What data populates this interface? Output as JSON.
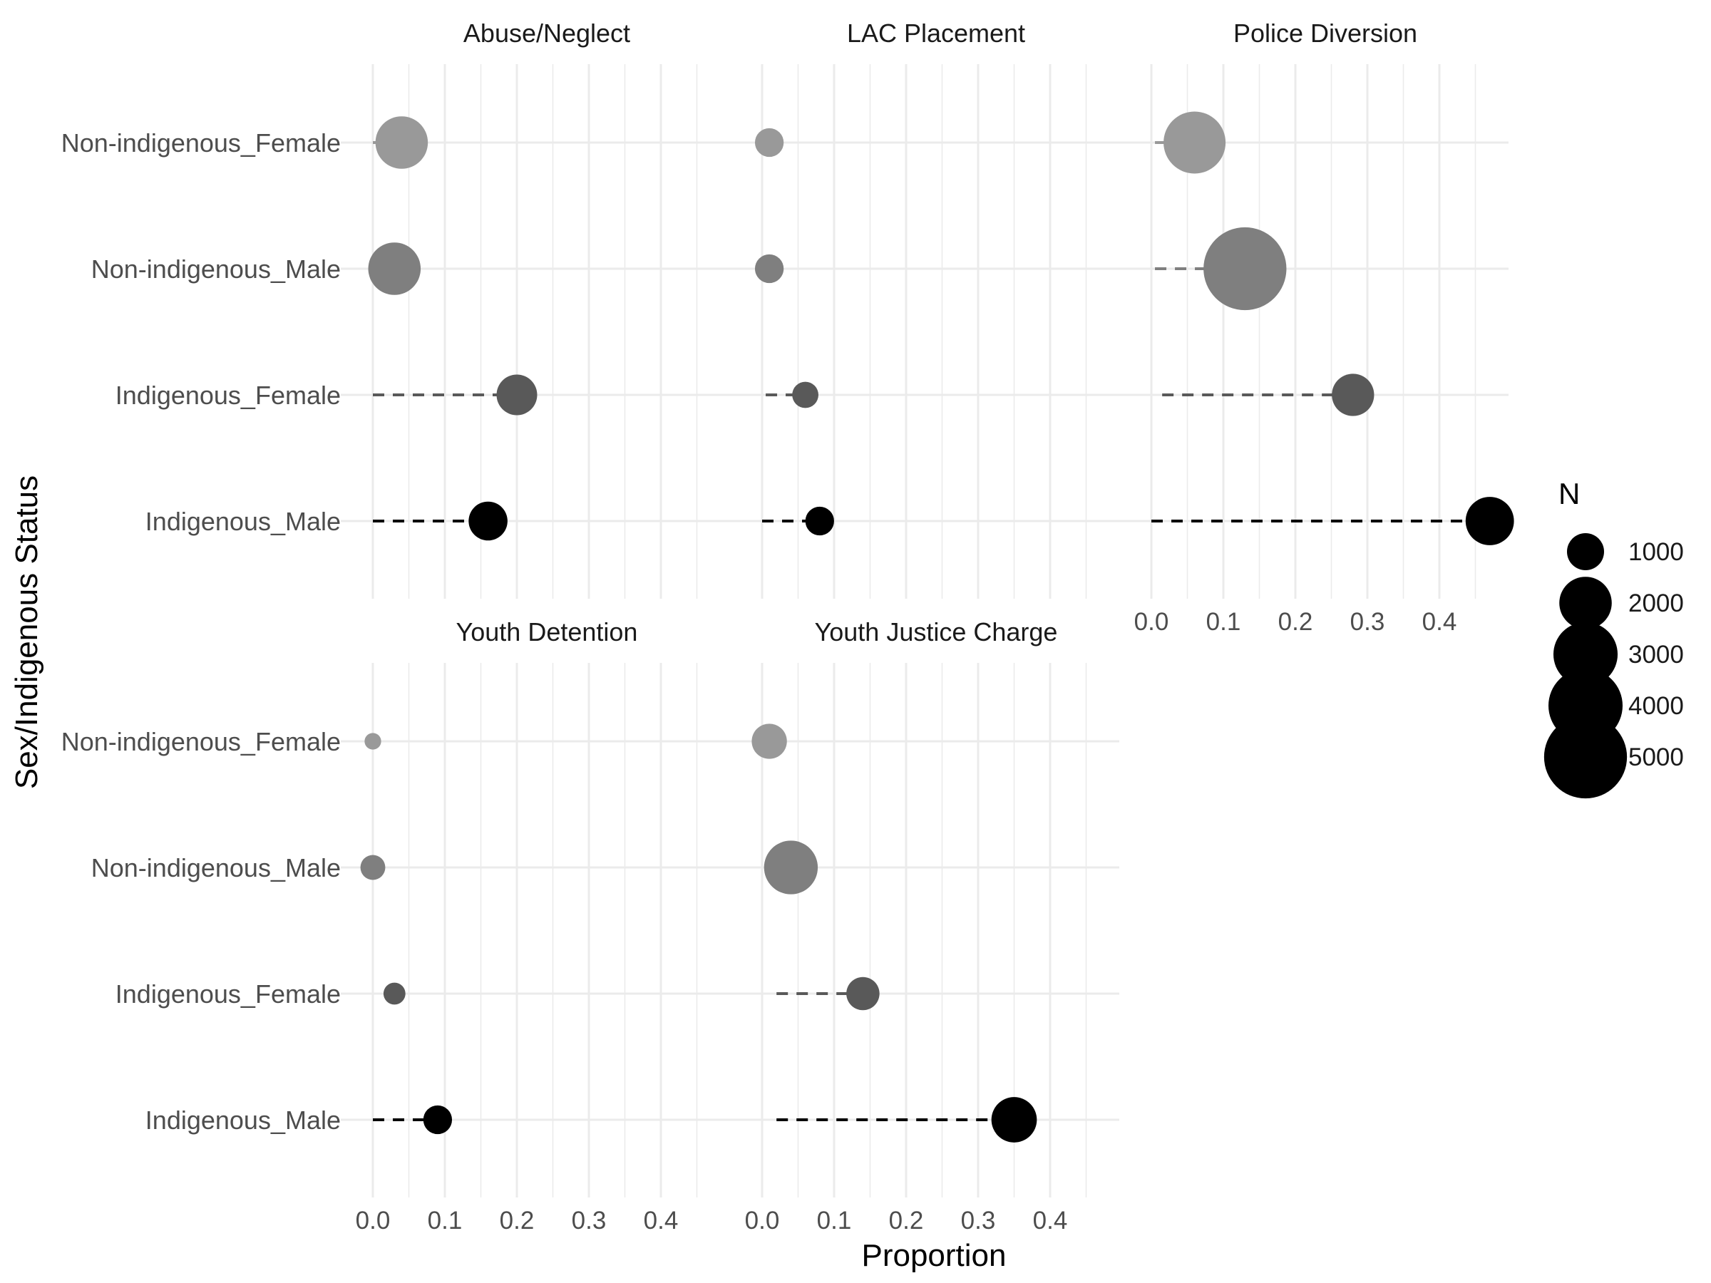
{
  "chart_data": {
    "type": "scatter",
    "subtype": "lollipop-faceted",
    "xlabel": "Proportion",
    "ylabel": "Sex/Indigenous Status",
    "xlim": [
      -0.02,
      0.47
    ],
    "x_ticks": [
      0.0,
      0.1,
      0.2,
      0.3,
      0.4
    ],
    "x_tick_labels": [
      "0.0",
      "0.1",
      "0.2",
      "0.3",
      "0.4"
    ],
    "grid": true,
    "categories": [
      "Non-indigenous_Female",
      "Non-indigenous_Male",
      "Indigenous_Female",
      "Indigenous_Male"
    ],
    "category_colors": {
      "Non-indigenous_Female": "#999999",
      "Non-indigenous_Male": "#7f7f7f",
      "Indigenous_Female": "#595959",
      "Indigenous_Male": "#000000"
    },
    "facets": [
      {
        "title": "Abuse/Neglect",
        "points": [
          {
            "category": "Non-indigenous_Female",
            "start": 0.0,
            "value": 0.04,
            "n": 2000
          },
          {
            "category": "Non-indigenous_Male",
            "start": 0.03,
            "value": 0.03,
            "n": 2000
          },
          {
            "category": "Indigenous_Female",
            "start": 0.0,
            "value": 0.2,
            "n": 1200
          },
          {
            "category": "Indigenous_Male",
            "start": 0.0,
            "value": 0.16,
            "n": 1100
          }
        ]
      },
      {
        "title": "LAC Placement",
        "points": [
          {
            "category": "Non-indigenous_Female",
            "start": 0.01,
            "value": 0.01,
            "n": 600
          },
          {
            "category": "Non-indigenous_Male",
            "start": 0.01,
            "value": 0.01,
            "n": 600
          },
          {
            "category": "Indigenous_Female",
            "start": 0.005,
            "value": 0.06,
            "n": 500
          },
          {
            "category": "Indigenous_Male",
            "start": 0.0,
            "value": 0.08,
            "n": 600
          }
        ]
      },
      {
        "title": "Police Diversion",
        "points": [
          {
            "category": "Non-indigenous_Female",
            "start": 0.005,
            "value": 0.06,
            "n": 2800
          },
          {
            "category": "Non-indigenous_Male",
            "start": 0.005,
            "value": 0.13,
            "n": 5000
          },
          {
            "category": "Indigenous_Female",
            "start": 0.015,
            "value": 0.28,
            "n": 1300
          },
          {
            "category": "Indigenous_Male",
            "start": 0.0,
            "value": 0.47,
            "n": 1700
          }
        ]
      },
      {
        "title": "Youth Detention",
        "points": [
          {
            "category": "Non-indigenous_Female",
            "start": 0.0,
            "value": 0.0,
            "n": 200
          },
          {
            "category": "Non-indigenous_Male",
            "start": 0.0,
            "value": 0.0,
            "n": 450
          },
          {
            "category": "Indigenous_Female",
            "start": 0.015,
            "value": 0.03,
            "n": 350
          },
          {
            "category": "Indigenous_Male",
            "start": 0.0,
            "value": 0.09,
            "n": 600
          }
        ]
      },
      {
        "title": "Youth Justice Charge",
        "points": [
          {
            "category": "Non-indigenous_Female",
            "start": 0.01,
            "value": 0.01,
            "n": 900
          },
          {
            "category": "Non-indigenous_Male",
            "start": 0.005,
            "value": 0.04,
            "n": 2100
          },
          {
            "category": "Indigenous_Female",
            "start": 0.02,
            "value": 0.14,
            "n": 800
          },
          {
            "category": "Indigenous_Male",
            "start": 0.02,
            "value": 0.35,
            "n": 1500
          }
        ]
      }
    ],
    "legend": {
      "title": "N",
      "placement": "right",
      "entries": [
        {
          "label": "1000",
          "n": 1000
        },
        {
          "label": "2000",
          "n": 2000
        },
        {
          "label": "3000",
          "n": 3000
        },
        {
          "label": "4000",
          "n": 4000
        },
        {
          "label": "5000",
          "n": 5000
        }
      ]
    }
  }
}
